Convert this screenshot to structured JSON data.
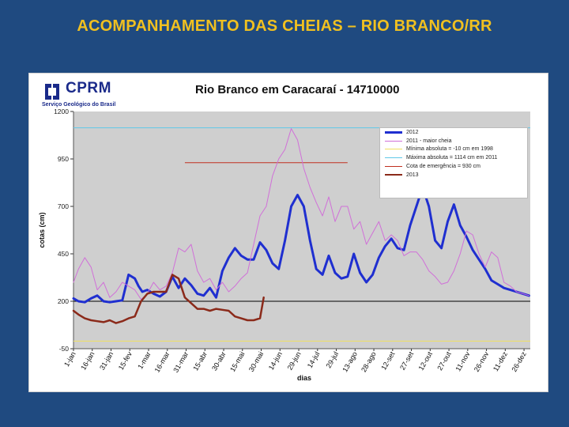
{
  "slide": {
    "title": "ACOMPANHAMENTO DAS CHEIAS – RIO BRANCO/RR"
  },
  "logo": {
    "name": "CPRM",
    "subtitle": "Serviço Geológico do Brasil"
  },
  "colors": {
    "background": "#1f4a80",
    "title": "#f0c020",
    "plot_bg": "#cfcfcf",
    "s2012": "#1f2fd0",
    "s2011": "#d070d8",
    "min": "#f0e060",
    "max": "#60c8e8",
    "emerg": "#c03020",
    "s2013": "#8b2a1a",
    "ref200": "#000000"
  },
  "chart_data": {
    "type": "line",
    "title": "Rio Branco em Caracaraí -  14710000",
    "xlabel": "dias",
    "ylabel": "cotas (cm)",
    "ylim": [
      -50,
      1200
    ],
    "yticks": [
      1200,
      950,
      700,
      450,
      200,
      -50
    ],
    "x_tick_labels": [
      "1-jan",
      "16-jan",
      "31-jan",
      "15-fev",
      "1-mar",
      "16-mar",
      "31-mar",
      "15-abr",
      "30-abr",
      "15-mai",
      "30-mai",
      "14-jun",
      "29-jun",
      "14-jul",
      "29-jul",
      "13-ago",
      "28-ago",
      "12-set",
      "27-set",
      "12-out",
      "27-out",
      "11-nov",
      "26-nov",
      "11-dez",
      "26-dez"
    ],
    "x_range": [
      1,
      366
    ],
    "x_tick_step_days": 15,
    "reference_lines": [
      {
        "name": "Mínima absoluta = -10 cm em 1998",
        "value": -10,
        "color_key": "min"
      },
      {
        "name": "Máxima absoluta = 1114 cm em 2011",
        "value": 1114,
        "color_key": "max"
      },
      {
        "name": "",
        "value": 200,
        "color_key": "ref200"
      },
      {
        "name": "Cota de emergência = 930 cm",
        "value": 930,
        "x_start": 90,
        "x_end": 220,
        "color_key": "emerg"
      }
    ],
    "series": [
      {
        "name": "2012",
        "color_key": "s2012",
        "width": 3,
        "x": [
          1,
          5,
          10,
          15,
          20,
          25,
          30,
          35,
          40,
          45,
          50,
          53,
          56,
          60,
          65,
          70,
          75,
          80,
          85,
          90,
          95,
          100,
          105,
          110,
          115,
          120,
          125,
          130,
          135,
          140,
          145,
          150,
          155,
          160,
          165,
          170,
          175,
          180,
          185,
          190,
          195,
          200,
          205,
          210,
          215,
          220,
          225,
          230,
          235,
          240,
          245,
          250,
          255,
          260,
          265,
          270,
          275,
          280,
          285,
          290,
          295,
          300,
          305,
          310,
          315,
          320,
          325,
          330,
          335,
          340,
          345,
          350,
          355,
          360,
          365
        ],
        "y": [
          215,
          200,
          195,
          215,
          230,
          200,
          195,
          200,
          205,
          340,
          320,
          280,
          250,
          260,
          240,
          225,
          250,
          330,
          270,
          320,
          285,
          240,
          230,
          270,
          220,
          360,
          430,
          480,
          440,
          420,
          420,
          510,
          470,
          400,
          370,
          520,
          700,
          760,
          700,
          520,
          370,
          340,
          440,
          350,
          320,
          330,
          450,
          350,
          300,
          340,
          430,
          490,
          530,
          480,
          470,
          600,
          700,
          800,
          700,
          520,
          480,
          620,
          710,
          600,
          540,
          470,
          420,
          370,
          310,
          290,
          270,
          260,
          250,
          240,
          230
        ]
      },
      {
        "name": "2011 - maior cheia",
        "color_key": "s2011",
        "x": [
          1,
          5,
          10,
          15,
          20,
          25,
          30,
          35,
          40,
          45,
          50,
          55,
          60,
          65,
          70,
          75,
          80,
          85,
          90,
          95,
          100,
          105,
          110,
          115,
          120,
          125,
          130,
          135,
          140,
          145,
          150,
          155,
          160,
          165,
          170,
          175,
          180,
          185,
          190,
          195,
          200,
          205,
          210,
          215,
          220,
          225,
          230,
          235,
          240,
          245,
          250,
          255,
          260,
          265,
          270,
          275,
          280,
          285,
          290,
          295,
          300,
          305,
          310,
          315,
          320,
          325,
          330,
          335,
          340,
          345,
          350,
          355,
          360,
          365
        ],
        "y": [
          300,
          370,
          430,
          380,
          260,
          300,
          220,
          250,
          300,
          280,
          260,
          210,
          240,
          300,
          260,
          280,
          350,
          480,
          460,
          500,
          360,
          300,
          320,
          260,
          300,
          250,
          280,
          320,
          350,
          500,
          650,
          700,
          860,
          950,
          1000,
          1110,
          1050,
          900,
          800,
          720,
          650,
          750,
          620,
          700,
          700,
          580,
          620,
          500,
          560,
          620,
          520,
          550,
          520,
          440,
          460,
          460,
          420,
          360,
          330,
          290,
          300,
          360,
          450,
          570,
          550,
          450,
          380,
          460,
          430,
          300,
          280,
          250,
          240,
          230
        ]
      },
      {
        "name": "2013",
        "color_key": "s2013",
        "width": 2.5,
        "x": [
          1,
          5,
          10,
          15,
          20,
          25,
          30,
          35,
          40,
          45,
          50,
          55,
          60,
          65,
          70,
          75,
          80,
          85,
          90,
          95,
          100,
          105,
          110,
          115,
          120,
          125,
          130,
          135,
          140,
          145,
          150,
          153
        ],
        "y": [
          150,
          130,
          110,
          100,
          95,
          90,
          100,
          85,
          95,
          110,
          120,
          200,
          240,
          250,
          250,
          250,
          340,
          320,
          220,
          190,
          160,
          160,
          150,
          160,
          155,
          150,
          120,
          110,
          100,
          100,
          110,
          220
        ]
      }
    ],
    "legend": {
      "placement": "top-right",
      "entries": [
        "2012",
        "2011 - maior cheia",
        "Mínima absoluta = -10 cm em 1998",
        "Máxima absoluta = 1114 cm em 2011",
        "Cota de emergência = 930 cm",
        "2013"
      ]
    },
    "grid": false
  }
}
